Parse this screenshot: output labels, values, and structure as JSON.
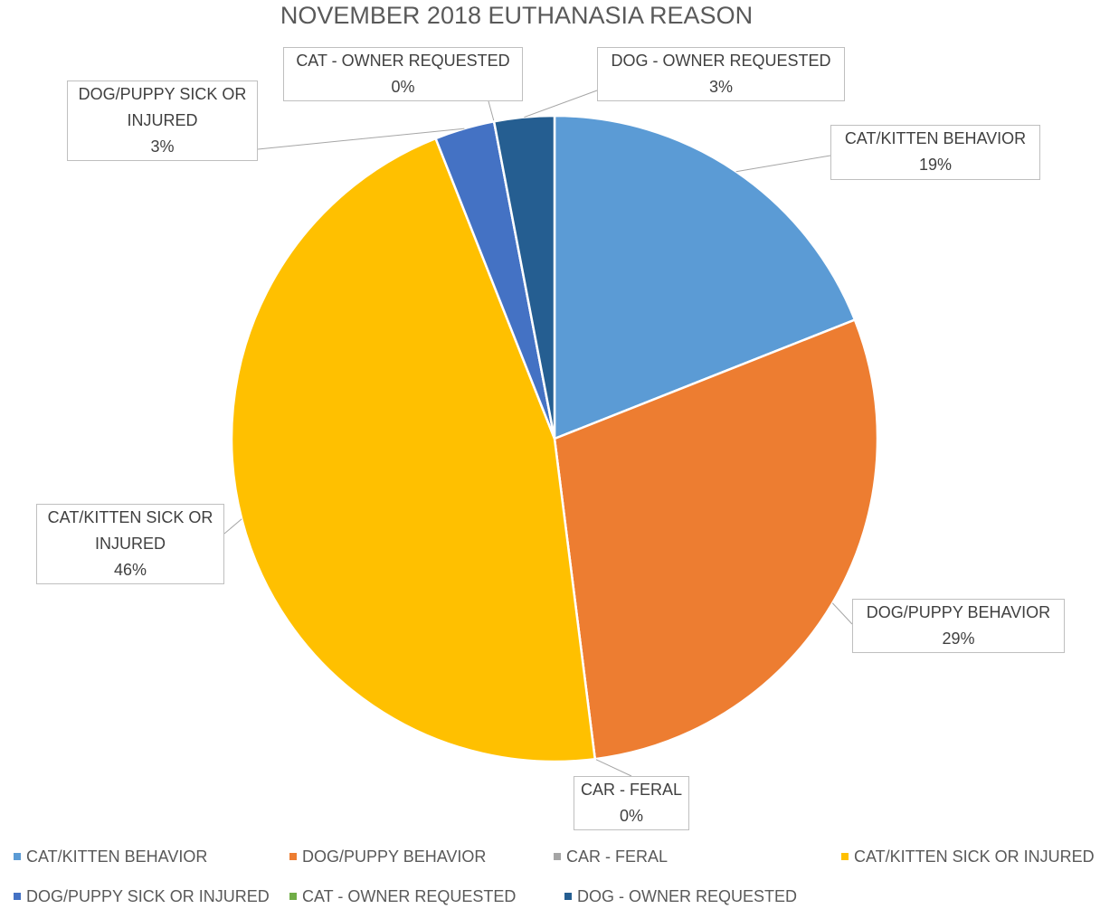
{
  "chart_data": {
    "type": "pie",
    "title": "NOVEMBER 2018 EUTHANASIA REASON",
    "categories": [
      "CAT/KITTEN BEHAVIOR",
      "DOG/PUPPY BEHAVIOR",
      "CAR - FERAL",
      "CAT/KITTEN SICK OR INJURED",
      "DOG/PUPPY SICK OR INJURED",
      "CAT - OWNER REQUESTED",
      "DOG - OWNER REQUESTED"
    ],
    "values": [
      19,
      29,
      0,
      46,
      3,
      0,
      3
    ],
    "value_labels": [
      "19%",
      "29%",
      "0%",
      "46%",
      "3%",
      "0%",
      "3%"
    ],
    "colors": [
      "#5b9bd5",
      "#ed7d31",
      "#a5a5a5",
      "#ffc000",
      "#4472c4",
      "#70ad47",
      "#255e91"
    ],
    "legend": "bottom"
  }
}
